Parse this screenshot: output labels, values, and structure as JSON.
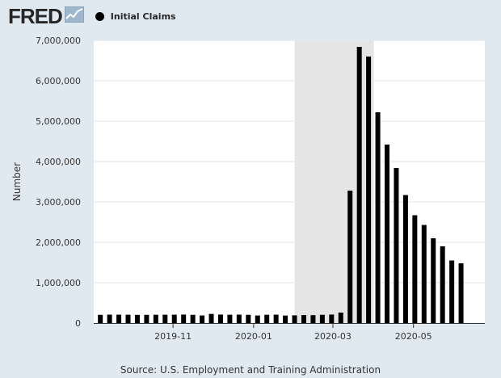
{
  "header": {
    "logo_text": "FRED",
    "logo_graph_icon": "line-chart-icon",
    "legend_marker_icon": "circle-marker-icon",
    "legend_label": "Initial Claims"
  },
  "source_text": "Source: U.S. Employment and Training Administration",
  "colors": {
    "background": "#e1e9f0",
    "plot_background": "#ffffff",
    "bar": "#000000",
    "recession_shading": "#e5e5e5",
    "gridline": "#e6e6e6"
  },
  "chart_data": {
    "type": "bar",
    "ylabel": "Number",
    "xlabel": "",
    "ylim": [
      0,
      7000000
    ],
    "y_ticks": [
      0,
      1000000,
      2000000,
      3000000,
      4000000,
      5000000,
      6000000,
      7000000
    ],
    "y_tick_labels": [
      "0",
      "1,000,000",
      "2,000,000",
      "3,000,000",
      "4,000,000",
      "5,000,000",
      "6,000,000",
      "7,000,000"
    ],
    "x_range": [
      "2019-09-02",
      "2020-06-24"
    ],
    "x_tick_labels": [
      {
        "date": "2019-11-01",
        "label": "2019-11"
      },
      {
        "date": "2020-01-01",
        "label": "2020-01"
      },
      {
        "date": "2020-03-01",
        "label": "2020-03"
      },
      {
        "date": "2020-05-01",
        "label": "2020-05"
      }
    ],
    "recession": {
      "start": "2020-02-01",
      "end": "2020-04-01"
    },
    "grid": true,
    "legend": "top-left",
    "series": [
      {
        "name": "Initial Claims",
        "points": [
          {
            "date": "2019-09-07",
            "value": 205000
          },
          {
            "date": "2019-09-14",
            "value": 209000
          },
          {
            "date": "2019-09-21",
            "value": 208000
          },
          {
            "date": "2019-09-28",
            "value": 207000
          },
          {
            "date": "2019-10-05",
            "value": 203000
          },
          {
            "date": "2019-10-12",
            "value": 205000
          },
          {
            "date": "2019-10-19",
            "value": 206000
          },
          {
            "date": "2019-10-26",
            "value": 207000
          },
          {
            "date": "2019-11-02",
            "value": 208000
          },
          {
            "date": "2019-11-09",
            "value": 211000
          },
          {
            "date": "2019-11-16",
            "value": 205000
          },
          {
            "date": "2019-11-23",
            "value": 189000
          },
          {
            "date": "2019-11-30",
            "value": 227000
          },
          {
            "date": "2019-12-07",
            "value": 211000
          },
          {
            "date": "2019-12-14",
            "value": 207000
          },
          {
            "date": "2019-12-21",
            "value": 209000
          },
          {
            "date": "2019-12-28",
            "value": 205000
          },
          {
            "date": "2020-01-04",
            "value": 188000
          },
          {
            "date": "2020-01-11",
            "value": 206000
          },
          {
            "date": "2020-01-18",
            "value": 208000
          },
          {
            "date": "2020-01-25",
            "value": 186000
          },
          {
            "date": "2020-02-01",
            "value": 192000
          },
          {
            "date": "2020-02-08",
            "value": 198000
          },
          {
            "date": "2020-02-15",
            "value": 196000
          },
          {
            "date": "2020-02-22",
            "value": 205000
          },
          {
            "date": "2020-02-29",
            "value": 211000
          },
          {
            "date": "2020-03-07",
            "value": 260000
          },
          {
            "date": "2020-03-14",
            "value": 3280000
          },
          {
            "date": "2020-03-21",
            "value": 6840000
          },
          {
            "date": "2020-03-28",
            "value": 6600000
          },
          {
            "date": "2020-04-04",
            "value": 5220000
          },
          {
            "date": "2020-04-11",
            "value": 4420000
          },
          {
            "date": "2020-04-18",
            "value": 3840000
          },
          {
            "date": "2020-04-25",
            "value": 3170000
          },
          {
            "date": "2020-05-02",
            "value": 2670000
          },
          {
            "date": "2020-05-09",
            "value": 2430000
          },
          {
            "date": "2020-05-16",
            "value": 2100000
          },
          {
            "date": "2020-05-23",
            "value": 1900000
          },
          {
            "date": "2020-05-30",
            "value": 1550000
          },
          {
            "date": "2020-06-06",
            "value": 1480000
          }
        ]
      }
    ]
  }
}
